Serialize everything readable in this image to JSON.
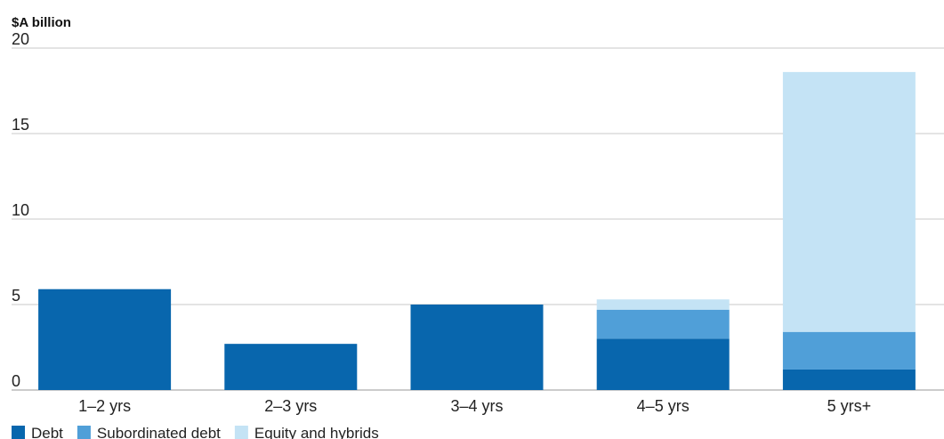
{
  "chart_data": {
    "type": "bar",
    "stacked": true,
    "ylabel": "$A billion",
    "ylim": [
      0,
      20
    ],
    "yticks": [
      "0",
      "5",
      "10",
      "15",
      "20"
    ],
    "grid": true,
    "legend_position": "bottom-left",
    "categories": [
      "1–2 yrs",
      "2–3 yrs",
      "3–4 yrs",
      "4–5 yrs",
      "5 yrs+"
    ],
    "series": [
      {
        "name": "Debt",
        "color": "#0866ad",
        "values": [
          5.9,
          2.7,
          5.0,
          3.0,
          1.2
        ]
      },
      {
        "name": "Subordinated debt",
        "color": "#509fd8",
        "values": [
          0,
          0,
          0,
          1.7,
          2.2
        ]
      },
      {
        "name": "Equity and hybrids",
        "color": "#c4e3f5",
        "values": [
          0,
          0,
          0,
          0.6,
          15.2
        ]
      }
    ]
  }
}
